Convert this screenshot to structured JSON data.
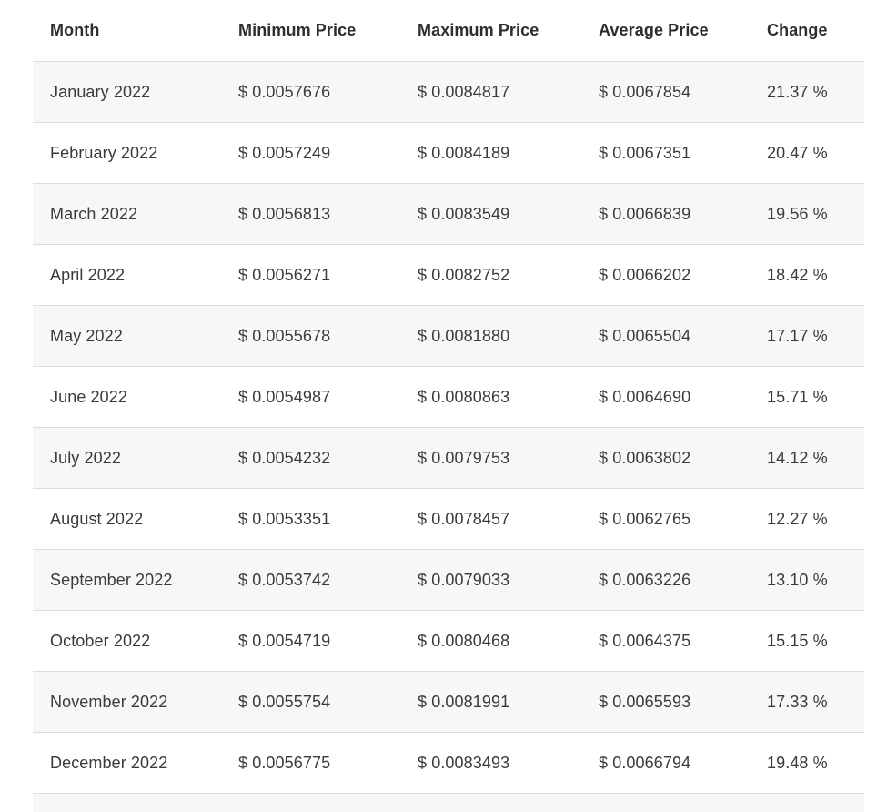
{
  "page": {
    "description": "Monthly price prediction table for 2022"
  },
  "colors": {
    "background": "#ffffff",
    "row_alt_background": "#f7f7f7",
    "row_border": "#dcdcdc",
    "header_text": "#2e2e2e",
    "body_text": "#3a3a3a"
  },
  "chart_data": {
    "type": "table",
    "columns": [
      "Month",
      "Minimum Price",
      "Maximum Price",
      "Average Price",
      "Change"
    ],
    "rows": [
      {
        "month": "January 2022",
        "min": "$ 0.0057676",
        "max": "$ 0.0084817",
        "avg": "$ 0.0067854",
        "change": "21.37 %"
      },
      {
        "month": "February 2022",
        "min": "$ 0.0057249",
        "max": "$ 0.0084189",
        "avg": "$ 0.0067351",
        "change": "20.47 %"
      },
      {
        "month": "March 2022",
        "min": "$ 0.0056813",
        "max": "$ 0.0083549",
        "avg": "$ 0.0066839",
        "change": "19.56 %"
      },
      {
        "month": "April 2022",
        "min": "$ 0.0056271",
        "max": "$ 0.0082752",
        "avg": "$ 0.0066202",
        "change": "18.42 %"
      },
      {
        "month": "May 2022",
        "min": "$ 0.0055678",
        "max": "$ 0.0081880",
        "avg": "$ 0.0065504",
        "change": "17.17 %"
      },
      {
        "month": "June 2022",
        "min": "$ 0.0054987",
        "max": "$ 0.0080863",
        "avg": "$ 0.0064690",
        "change": "15.71 %"
      },
      {
        "month": "July 2022",
        "min": "$ 0.0054232",
        "max": "$ 0.0079753",
        "avg": "$ 0.0063802",
        "change": "14.12 %"
      },
      {
        "month": "August 2022",
        "min": "$ 0.0053351",
        "max": "$ 0.0078457",
        "avg": "$ 0.0062765",
        "change": "12.27 %"
      },
      {
        "month": "September 2022",
        "min": "$ 0.0053742",
        "max": "$ 0.0079033",
        "avg": "$ 0.0063226",
        "change": "13.10 %"
      },
      {
        "month": "October 2022",
        "min": "$ 0.0054719",
        "max": "$ 0.0080468",
        "avg": "$ 0.0064375",
        "change": "15.15 %"
      },
      {
        "month": "November 2022",
        "min": "$ 0.0055754",
        "max": "$ 0.0081991",
        "avg": "$ 0.0065593",
        "change": "17.33 %"
      },
      {
        "month": "December 2022",
        "min": "$ 0.0056775",
        "max": "$ 0.0083493",
        "avg": "$ 0.0066794",
        "change": "19.48 %"
      }
    ]
  }
}
